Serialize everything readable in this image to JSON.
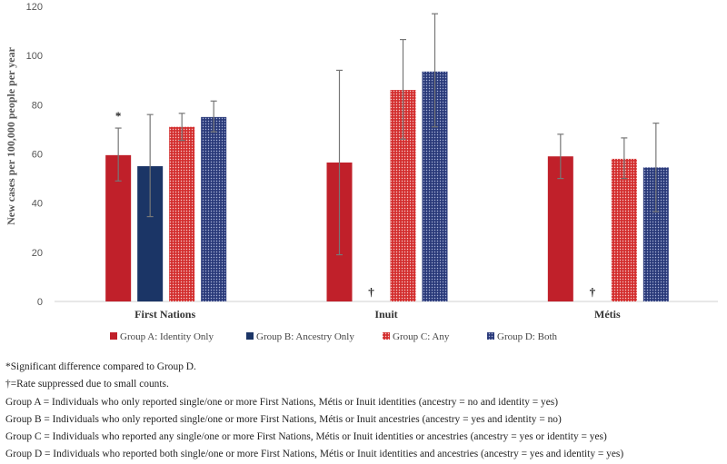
{
  "chart_data": {
    "type": "bar",
    "ylabel": "New cases per 100,000 people per year",
    "ylim": [
      0,
      120
    ],
    "yticks": [
      0,
      20,
      40,
      60,
      80,
      100,
      120
    ],
    "categories": [
      "First Nations",
      "Inuit",
      "Métis"
    ],
    "series": [
      {
        "name": "Group A: Identity Only",
        "color": "#c0202a",
        "pattern": "solid",
        "values": [
          59.5,
          56.5,
          59
        ],
        "err_low": [
          49,
          19,
          50
        ],
        "err_high": [
          70.5,
          94,
          68
        ]
      },
      {
        "name": "Group B: Ancestry Only",
        "color": "#1b3566",
        "pattern": "solid",
        "values": [
          55,
          null,
          null
        ],
        "err_low": [
          34.5,
          null,
          null
        ],
        "err_high": [
          76,
          null,
          null
        ]
      },
      {
        "name": "Group C: Any",
        "color": "#d32f2f",
        "pattern": "dotted",
        "values": [
          71,
          86,
          58
        ],
        "err_low": [
          65.5,
          66,
          50
        ],
        "err_high": [
          76.5,
          106.5,
          66.5
        ]
      },
      {
        "name": "Group D: Both",
        "color": "#2a3a7a",
        "pattern": "dotted",
        "values": [
          75,
          93.5,
          54.5
        ],
        "err_low": [
          69,
          71,
          36.5
        ],
        "err_high": [
          81.5,
          117,
          72.5
        ]
      }
    ],
    "annotations": [
      {
        "text": "*",
        "category": "First Nations",
        "series": "Group A: Identity Only"
      },
      {
        "text": "†",
        "category": "Inuit",
        "series": "Group B: Ancestry Only"
      },
      {
        "text": "†",
        "category": "Métis",
        "series": "Group B: Ancestry Only"
      }
    ],
    "legend_position": "bottom"
  },
  "notes": {
    "significant": "*Significant difference compared to Group D.",
    "suppressed": "†=Rate suppressed due to small counts.",
    "group_a": "Group A = Individuals who only reported single/one or more First Nations, Métis or Inuit identities (ancestry = no and identity = yes)",
    "group_b": "Group B = Individuals who only reported single/one or more First Nations, Métis or Inuit ancestries (ancestry = yes and identity = no)",
    "group_c": "Group C = Individuals who reported any single/one or more First Nations, Métis or Inuit identities or ancestries (ancestry = yes or identity = yes)",
    "group_d": "Group D = Individuals who reported both single/one or more First Nations, Métis or Inuit identities and ancestries (ancestry = yes and identity = yes)"
  }
}
